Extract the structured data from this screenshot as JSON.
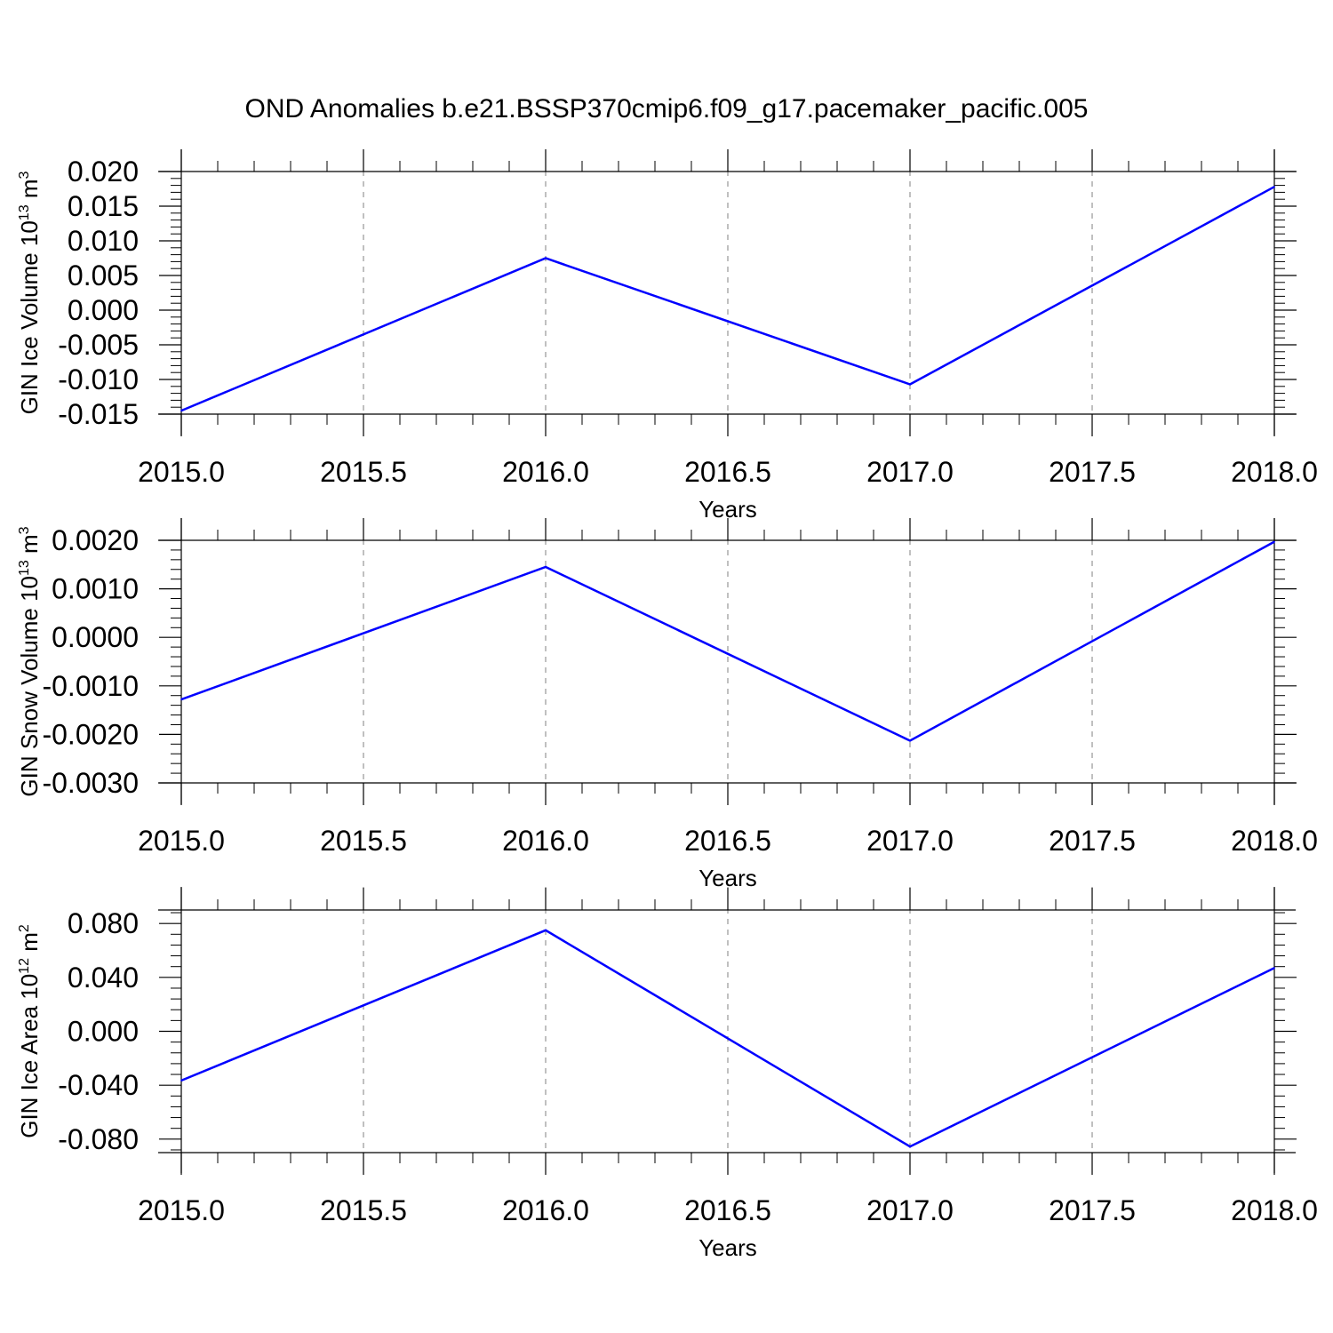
{
  "title": "OND Anomalies b.e21.BSSP370cmip6.f09_g17.pacemaker_pacific.005",
  "colors": {
    "line": "#0000ff",
    "frame": "#000000",
    "grid": "#808080"
  },
  "chart_data": [
    {
      "type": "line",
      "xlabel": "Years",
      "ylabel_main": "GIN Ice Volume 10",
      "ylabel_exp": "13",
      "ylabel_unit": " m",
      "ylabel_unit_exp": "3",
      "xlim": [
        2015.0,
        2018.0
      ],
      "ylim": [
        -0.015,
        0.02
      ],
      "xticks": [
        2015.0,
        2015.5,
        2016.0,
        2016.5,
        2017.0,
        2017.5,
        2018.0
      ],
      "xtick_labels": [
        "2015.0",
        "2015.5",
        "2016.0",
        "2016.5",
        "2017.0",
        "2017.5",
        "2018.0"
      ],
      "yticks": [
        -0.015,
        -0.01,
        -0.005,
        0.0,
        0.005,
        0.01,
        0.015,
        0.02
      ],
      "ytick_labels": [
        "-0.015",
        "-0.010",
        "-0.005",
        "0.000",
        "0.005",
        "0.010",
        "0.015",
        "0.020"
      ],
      "yminor_step": 0.001,
      "x": [
        2015.0,
        2016.0,
        2017.0,
        2018.0
      ],
      "series": [
        {
          "values": [
            -0.0145,
            0.0075,
            -0.0107,
            0.0178
          ]
        }
      ]
    },
    {
      "type": "line",
      "xlabel": "Years",
      "ylabel_main": "GIN Snow Volume 10",
      "ylabel_exp": "13",
      "ylabel_unit": " m",
      "ylabel_unit_exp": "3",
      "xlim": [
        2015.0,
        2018.0
      ],
      "ylim": [
        -0.003,
        0.002
      ],
      "xticks": [
        2015.0,
        2015.5,
        2016.0,
        2016.5,
        2017.0,
        2017.5,
        2018.0
      ],
      "xtick_labels": [
        "2015.0",
        "2015.5",
        "2016.0",
        "2016.5",
        "2017.0",
        "2017.5",
        "2018.0"
      ],
      "yticks": [
        -0.003,
        -0.002,
        -0.001,
        0.0,
        0.001,
        0.002
      ],
      "ytick_labels": [
        "-0.0030",
        "-0.0020",
        "-0.0010",
        "0.0000",
        "0.0010",
        "0.0020"
      ],
      "yminor_step": 0.0002,
      "x": [
        2015.0,
        2016.0,
        2017.0,
        2018.0
      ],
      "series": [
        {
          "values": [
            -0.00128,
            0.00145,
            -0.00213,
            0.00197
          ]
        }
      ]
    },
    {
      "type": "line",
      "xlabel": "Years",
      "ylabel_main": "GIN Ice Area 10",
      "ylabel_exp": "12",
      "ylabel_unit": " m",
      "ylabel_unit_exp": "2",
      "xlim": [
        2015.0,
        2018.0
      ],
      "ylim": [
        -0.09,
        0.09
      ],
      "xticks": [
        2015.0,
        2015.5,
        2016.0,
        2016.5,
        2017.0,
        2017.5,
        2018.0
      ],
      "xtick_labels": [
        "2015.0",
        "2015.5",
        "2016.0",
        "2016.5",
        "2017.0",
        "2017.5",
        "2018.0"
      ],
      "yticks": [
        -0.08,
        -0.04,
        0.0,
        0.04,
        0.08
      ],
      "ytick_labels": [
        "-0.080",
        "-0.040",
        "0.000",
        "0.040",
        "0.080"
      ],
      "yminor_step": 0.008,
      "x": [
        2015.0,
        2016.0,
        2017.0,
        2018.0
      ],
      "series": [
        {
          "values": [
            -0.0365,
            0.075,
            -0.0855,
            0.047
          ]
        }
      ]
    }
  ]
}
